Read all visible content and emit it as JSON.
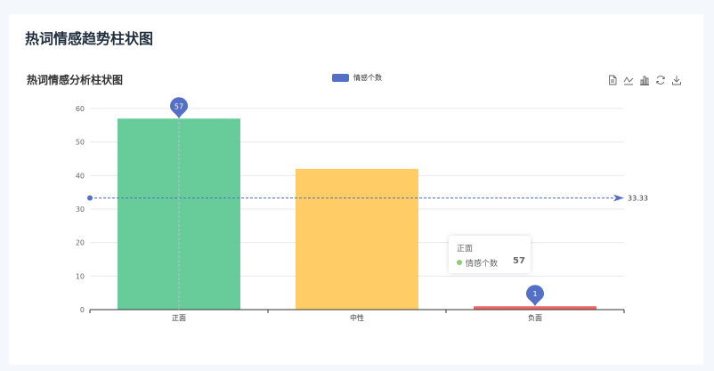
{
  "page": {
    "title": "热词情感趋势柱状图"
  },
  "toolbox": [
    {
      "name": "data-view-icon"
    },
    {
      "name": "line-switch-icon"
    },
    {
      "name": "bar-switch-icon"
    },
    {
      "name": "restore-icon"
    },
    {
      "name": "save-image-icon"
    }
  ],
  "tooltip": {
    "title": "正面",
    "series_name": "情感个数",
    "value": "57",
    "color": "#91cc75"
  },
  "chart_data": {
    "type": "bar",
    "title": "热词情感分析柱状图",
    "categories": [
      "正面",
      "中性",
      "负面"
    ],
    "series": [
      {
        "name": "情感个数",
        "values": [
          57,
          42,
          1
        ],
        "colors": [
          "#67cc99",
          "#ffcc66",
          "#ee6666"
        ]
      }
    ],
    "ylim": [
      0,
      60
    ],
    "yticks": [
      0,
      10,
      20,
      30,
      40,
      50,
      60
    ],
    "legend_color": "#5470c6",
    "legend_position": "top-center",
    "grid": true,
    "mark_points": [
      {
        "category": "正面",
        "value": 57,
        "label": "57"
      },
      {
        "category": "负面",
        "value": 1,
        "label": "1"
      }
    ],
    "mark_line": {
      "type": "average",
      "value": 33.33,
      "label": "33.33"
    }
  }
}
